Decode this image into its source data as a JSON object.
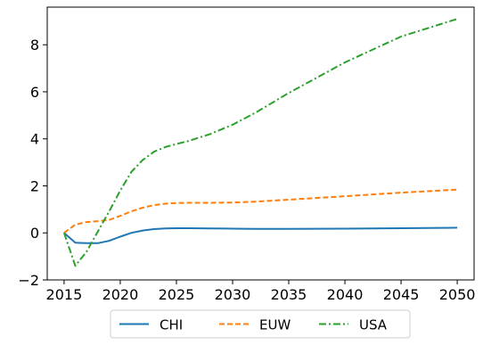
{
  "chart_data": {
    "type": "line",
    "title": "",
    "xlabel": "",
    "ylabel": "",
    "xlim": [
      2013.5,
      2051.5
    ],
    "ylim": [
      -2.0,
      9.6
    ],
    "xticks": [
      2015,
      2020,
      2025,
      2030,
      2035,
      2040,
      2045,
      2050
    ],
    "yticks": [
      -2,
      0,
      2,
      4,
      6,
      8
    ],
    "grid": false,
    "legend": {
      "position": "bottom-center, below plot"
    },
    "series": [
      {
        "name": "CHI",
        "color": "#1f77b4",
        "dash": "solid",
        "x": [
          2015,
          2016,
          2017,
          2018,
          2019,
          2020,
          2021,
          2022,
          2023,
          2024,
          2025,
          2026,
          2028,
          2030,
          2032,
          2035,
          2040,
          2045,
          2050
        ],
        "y": [
          0.0,
          -0.42,
          -0.44,
          -0.44,
          -0.34,
          -0.16,
          0.0,
          0.1,
          0.16,
          0.19,
          0.2,
          0.2,
          0.19,
          0.18,
          0.17,
          0.17,
          0.18,
          0.2,
          0.22
        ]
      },
      {
        "name": "EUW",
        "color": "#ff7f0e",
        "dash": "dashed",
        "x": [
          2015,
          2016,
          2017,
          2018,
          2019,
          2020,
          2021,
          2022,
          2023,
          2024,
          2025,
          2026,
          2028,
          2030,
          2032,
          2035,
          2040,
          2045,
          2050
        ],
        "y": [
          0.0,
          0.35,
          0.46,
          0.5,
          0.55,
          0.72,
          0.92,
          1.07,
          1.18,
          1.24,
          1.27,
          1.28,
          1.28,
          1.29,
          1.33,
          1.41,
          1.56,
          1.71,
          1.84
        ]
      },
      {
        "name": "USA",
        "color": "#2ca02c",
        "dash": "dashdot",
        "x": [
          2015,
          2016,
          2017,
          2018,
          2019,
          2020,
          2021,
          2022,
          2023,
          2024,
          2025,
          2026,
          2028,
          2030,
          2032,
          2035,
          2040,
          2045,
          2050
        ],
        "y": [
          0.0,
          -1.4,
          -0.8,
          0.05,
          0.9,
          1.8,
          2.6,
          3.1,
          3.45,
          3.65,
          3.78,
          3.9,
          4.2,
          4.6,
          5.1,
          5.95,
          7.25,
          8.35,
          9.1
        ]
      }
    ]
  }
}
